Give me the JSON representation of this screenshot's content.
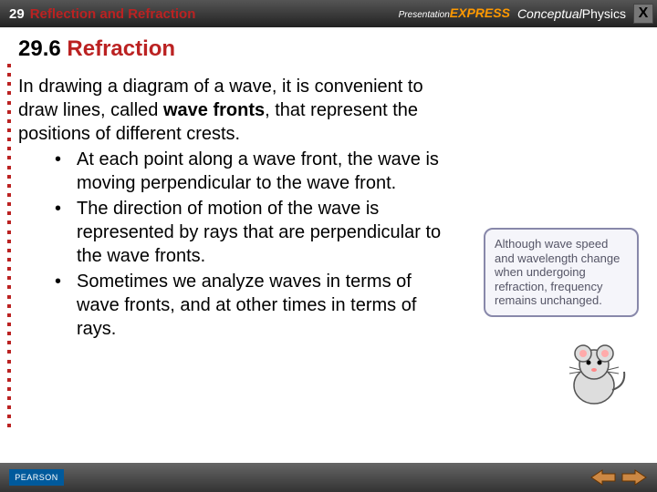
{
  "header": {
    "chapter_num": "29",
    "chapter_title": "Reflection and Refraction",
    "brand_presentation": "Presentation",
    "brand_express": "EXPRESS",
    "brand_conceptual": "Conceptual",
    "brand_physics": "Physics",
    "close_label": "X"
  },
  "section": {
    "number": "29.6",
    "title": "Refraction"
  },
  "body": {
    "intro_1": "In drawing a diagram of a wave, it is convenient to draw lines, called ",
    "intro_bold": "wave fronts",
    "intro_2": ", that represent the positions of different crests.",
    "bullets": [
      "At each point along a wave front, the wave is moving perpendicular to the wave front.",
      "The direction of motion of the wave is represented by rays that are perpendicular to the wave fronts.",
      "Sometimes we analyze waves in terms of wave fronts, and at other times in terms of rays."
    ]
  },
  "callout": {
    "text": "Although wave speed and wavelength change when undergoing refraction, frequency remains unchanged."
  },
  "footer": {
    "publisher": "PEARSON"
  },
  "colors": {
    "accent_red": "#b22222",
    "callout_border": "#8888aa",
    "callout_text": "#555577",
    "arrow_fill": "#cc6600",
    "arrow_stroke": "#663300"
  }
}
